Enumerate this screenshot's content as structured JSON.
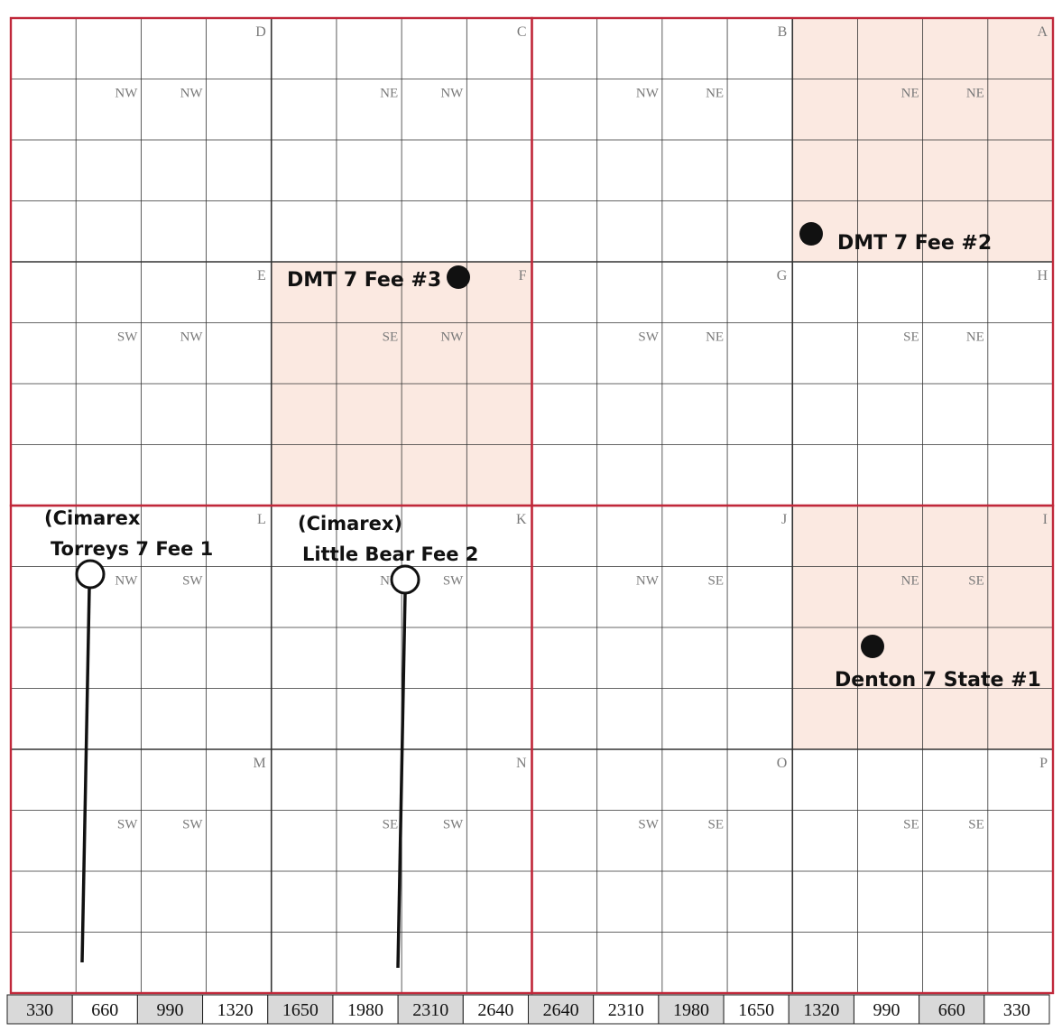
{
  "quarter_sections": [
    {
      "letter": "D",
      "q1": "NW",
      "q2": "NW"
    },
    {
      "letter": "C",
      "q1": "NE",
      "q2": "NW"
    },
    {
      "letter": "B",
      "q1": "NW",
      "q2": "NE"
    },
    {
      "letter": "A",
      "q1": "NE",
      "q2": "NE"
    },
    {
      "letter": "E",
      "q1": "SW",
      "q2": "NW"
    },
    {
      "letter": "F",
      "q1": "SE",
      "q2": "NW"
    },
    {
      "letter": "G",
      "q1": "SW",
      "q2": "NE"
    },
    {
      "letter": "H",
      "q1": "SE",
      "q2": "NE"
    },
    {
      "letter": "L",
      "q1": "NW",
      "q2": "SW"
    },
    {
      "letter": "K",
      "q1": "NE",
      "q2": "SW"
    },
    {
      "letter": "J",
      "q1": "NW",
      "q2": "SE"
    },
    {
      "letter": "I",
      "q1": "NE",
      "q2": "SE"
    },
    {
      "letter": "M",
      "q1": "SW",
      "q2": "SW"
    },
    {
      "letter": "N",
      "q1": "SE",
      "q2": "SW"
    },
    {
      "letter": "O",
      "q1": "SW",
      "q2": "SE"
    },
    {
      "letter": "P",
      "q1": "SE",
      "q2": "SE"
    }
  ],
  "highlighted_units": [
    "A",
    "F",
    "I"
  ],
  "wells": [
    {
      "name": "DMT 7 Fee #3",
      "symbol": "filled-circle",
      "unit": "F"
    },
    {
      "name": "DMT 7 Fee #2",
      "symbol": "filled-circle",
      "unit": "A"
    },
    {
      "name": "Denton 7 State #1",
      "symbol": "filled-circle",
      "unit": "I"
    },
    {
      "name_line1": "(Cimarex",
      "name_line2": "Torreys 7 Fee 1",
      "symbol": "open-circle-with-lateral",
      "unit": "L"
    },
    {
      "name_line1": "(Cimarex)",
      "name_line2": "Little Bear Fee 2",
      "symbol": "open-circle-with-lateral",
      "unit": "K"
    }
  ],
  "scale_bar": [
    "330",
    "660",
    "990",
    "1320",
    "1650",
    "1980",
    "2310",
    "2640",
    "2640",
    "2310",
    "1980",
    "1650",
    "1320",
    "990",
    "660",
    "330"
  ],
  "colors": {
    "section_border": "#c0283a",
    "grid_line": "#333333",
    "highlight_fill": "#fbe9e1",
    "well_fill": "#111111",
    "scale_shaded": "#d9d9d9"
  }
}
